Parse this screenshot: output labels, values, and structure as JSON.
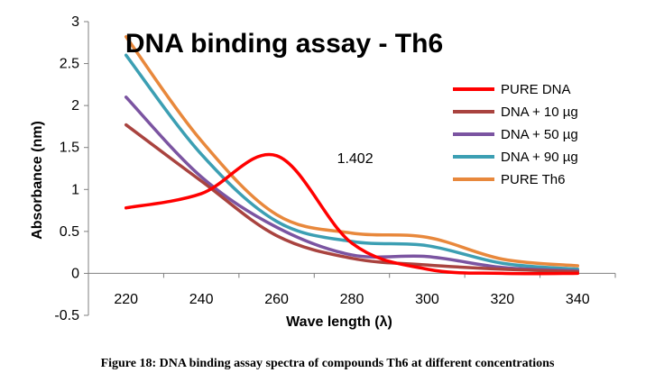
{
  "chart_data": {
    "type": "line",
    "title": "DNA binding assay - Th6",
    "xlabel": "Wave length (λ)",
    "ylabel": "Absorbance (nm)",
    "x": [
      220,
      240,
      260,
      280,
      300,
      320,
      340
    ],
    "xlim": [
      210,
      350
    ],
    "ylim": [
      -0.5,
      3
    ],
    "yticks": [
      "-0.5",
      "0",
      "0.5",
      "1",
      "1.5",
      "2",
      "2.5",
      "3"
    ],
    "xticks": [
      "220",
      "240",
      "260",
      "280",
      "300",
      "320",
      "340"
    ],
    "legend_position": "right",
    "grid": false,
    "series": [
      {
        "name": "PURE DNA",
        "color": "#ff0000",
        "values": [
          0.78,
          0.95,
          1.402,
          0.36,
          0.05,
          0.0,
          0.0
        ]
      },
      {
        "name": "DNA + 10 µg",
        "color": "#a9433f",
        "values": [
          1.77,
          1.1,
          0.45,
          0.18,
          0.1,
          0.05,
          0.02
        ]
      },
      {
        "name": "DNA + 50 µg",
        "color": "#7b54a1",
        "values": [
          2.1,
          1.15,
          0.55,
          0.22,
          0.2,
          0.07,
          0.03
        ]
      },
      {
        "name": "DNA + 90 µg",
        "color": "#3c9fb3",
        "values": [
          2.6,
          1.42,
          0.62,
          0.38,
          0.33,
          0.12,
          0.05
        ]
      },
      {
        "name": "PURE Th6",
        "color": "#e8883c",
        "values": [
          2.82,
          1.58,
          0.7,
          0.48,
          0.43,
          0.17,
          0.09
        ]
      }
    ],
    "annotations": [
      {
        "text": "1.402",
        "series": "PURE DNA",
        "x": 260,
        "y": 1.402
      }
    ]
  },
  "caption": "Figure 18: DNA binding assay spectra of compounds Th6 at different concentrations"
}
